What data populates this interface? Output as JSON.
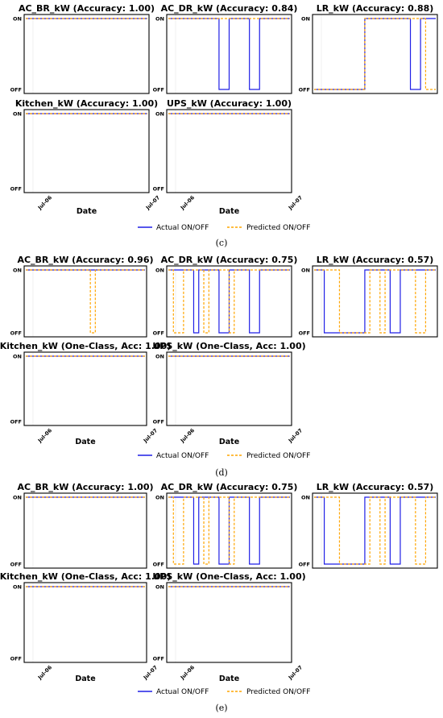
{
  "chart_data": [
    {
      "group": "(c)",
      "type": "line",
      "state_labels": {
        "on": "ON",
        "off": "OFF"
      },
      "x_ticks": [
        "Jul-06",
        "Jul-07"
      ],
      "xlabel": "Date",
      "legend": {
        "actual": "Actual ON/OFF",
        "predicted": "Predicted ON/OFF"
      },
      "colors": {
        "actual": "#1f1fe6",
        "predicted": "#ffa500"
      },
      "panels": [
        {
          "title": "AC_BR_kW (Accuracy: 1.00)",
          "series": [
            {
              "name": "Actual ON/OFF",
              "values": [
                1,
                1,
                1,
                1,
                1,
                1,
                1,
                1,
                1,
                1,
                1,
                1,
                1,
                1,
                1,
                1,
                1,
                1,
                1,
                1,
                1,
                1,
                1,
                1
              ]
            },
            {
              "name": "Predicted ON/OFF",
              "values": [
                1,
                1,
                1,
                1,
                1,
                1,
                1,
                1,
                1,
                1,
                1,
                1,
                1,
                1,
                1,
                1,
                1,
                1,
                1,
                1,
                1,
                1,
                1,
                1
              ]
            }
          ]
        },
        {
          "title": "AC_DR_kW (Accuracy: 0.84)",
          "series": [
            {
              "name": "Actual ON/OFF",
              "values": [
                1,
                1,
                1,
                1,
                1,
                1,
                1,
                1,
                1,
                1,
                0,
                0,
                1,
                1,
                1,
                1,
                0,
                0,
                1,
                1,
                1,
                1,
                1,
                1
              ]
            },
            {
              "name": "Predicted ON/OFF",
              "values": [
                1,
                1,
                1,
                1,
                1,
                1,
                1,
                1,
                1,
                1,
                1,
                1,
                1,
                1,
                1,
                1,
                1,
                1,
                1,
                1,
                1,
                1,
                1,
                1
              ]
            }
          ]
        },
        {
          "title": "LR_kW (Accuracy: 0.88)",
          "series": [
            {
              "name": "Actual ON/OFF",
              "values": [
                0,
                0,
                0,
                0,
                0,
                0,
                0,
                0,
                0,
                0,
                1,
                1,
                1,
                1,
                1,
                1,
                1,
                1,
                1,
                0,
                0,
                1,
                1,
                1
              ]
            },
            {
              "name": "Predicted ON/OFF",
              "values": [
                0,
                0,
                0,
                0,
                0,
                0,
                0,
                0,
                0,
                0,
                1,
                1,
                1,
                1,
                1,
                1,
                1,
                1,
                1,
                1,
                1,
                1,
                0,
                0
              ]
            }
          ]
        },
        {
          "title": "Kitchen_kW (Accuracy: 1.00)",
          "series": [
            {
              "name": "Actual ON/OFF",
              "values": [
                1,
                1,
                1,
                1,
                1,
                1,
                1,
                1,
                1,
                1,
                1,
                1,
                1,
                1,
                1,
                1,
                1,
                1,
                1,
                1,
                1,
                1,
                1,
                1
              ]
            },
            {
              "name": "Predicted ON/OFF",
              "values": [
                1,
                1,
                1,
                1,
                1,
                1,
                1,
                1,
                1,
                1,
                1,
                1,
                1,
                1,
                1,
                1,
                1,
                1,
                1,
                1,
                1,
                1,
                1,
                1
              ]
            }
          ]
        },
        {
          "title": "UPS_kW (Accuracy: 1.00)",
          "series": [
            {
              "name": "Actual ON/OFF",
              "values": [
                1,
                1,
                1,
                1,
                1,
                1,
                1,
                1,
                1,
                1,
                1,
                1,
                1,
                1,
                1,
                1,
                1,
                1,
                1,
                1,
                1,
                1,
                1,
                1
              ]
            },
            {
              "name": "Predicted ON/OFF",
              "values": [
                1,
                1,
                1,
                1,
                1,
                1,
                1,
                1,
                1,
                1,
                1,
                1,
                1,
                1,
                1,
                1,
                1,
                1,
                1,
                1,
                1,
                1,
                1,
                1
              ]
            }
          ]
        }
      ]
    },
    {
      "group": "(d)",
      "type": "line",
      "state_labels": {
        "on": "ON",
        "off": "OFF"
      },
      "x_ticks": [
        "Jul-06",
        "Jul-07"
      ],
      "xlabel": "Date",
      "legend": {
        "actual": "Actual ON/OFF",
        "predicted": "Predicted ON/OFF"
      },
      "colors": {
        "actual": "#1f1fe6",
        "predicted": "#ffa500"
      },
      "panels": [
        {
          "title": "AC_BR_kW (Accuracy: 0.96)",
          "series": [
            {
              "name": "Actual ON/OFF",
              "values": [
                1,
                1,
                1,
                1,
                1,
                1,
                1,
                1,
                1,
                1,
                1,
                1,
                1,
                1,
                1,
                1,
                1,
                1,
                1,
                1,
                1,
                1,
                1,
                1
              ]
            },
            {
              "name": "Predicted ON/OFF",
              "values": [
                1,
                1,
                1,
                1,
                1,
                1,
                1,
                1,
                1,
                1,
                1,
                1,
                1,
                0,
                1,
                1,
                1,
                1,
                1,
                1,
                1,
                1,
                1,
                1
              ]
            }
          ]
        },
        {
          "title": "AC_DR_kW (Accuracy: 0.75)",
          "series": [
            {
              "name": "Actual ON/OFF",
              "values": [
                1,
                1,
                1,
                1,
                1,
                0,
                1,
                1,
                1,
                1,
                0,
                0,
                1,
                1,
                1,
                1,
                0,
                0,
                1,
                1,
                1,
                1,
                1,
                1
              ]
            },
            {
              "name": "Predicted ON/OFF",
              "values": [
                1,
                0,
                0,
                1,
                1,
                1,
                1,
                0,
                1,
                1,
                1,
                1,
                0,
                1,
                1,
                1,
                1,
                1,
                1,
                1,
                1,
                1,
                1,
                1
              ]
            }
          ]
        },
        {
          "title": "LR_kW (Accuracy: 0.57)",
          "series": [
            {
              "name": "Actual ON/OFF",
              "values": [
                1,
                1,
                0,
                0,
                0,
                0,
                0,
                0,
                0,
                0,
                1,
                1,
                1,
                1,
                1,
                0,
                0,
                1,
                1,
                1,
                1,
                1,
                1,
                1
              ]
            },
            {
              "name": "Predicted ON/OFF",
              "values": [
                1,
                1,
                1,
                1,
                1,
                0,
                0,
                0,
                0,
                0,
                0,
                1,
                1,
                0,
                1,
                1,
                1,
                1,
                1,
                1,
                0,
                0,
                1,
                1
              ]
            }
          ]
        },
        {
          "title": "Kitchen_kW (One-Class, Acc: 1.00)",
          "series": [
            {
              "name": "Actual ON/OFF",
              "values": [
                1,
                1,
                1,
                1,
                1,
                1,
                1,
                1,
                1,
                1,
                1,
                1,
                1,
                1,
                1,
                1,
                1,
                1,
                1,
                1,
                1,
                1,
                1,
                1
              ]
            },
            {
              "name": "Predicted ON/OFF",
              "values": [
                1,
                1,
                1,
                1,
                1,
                1,
                1,
                1,
                1,
                1,
                1,
                1,
                1,
                1,
                1,
                1,
                1,
                1,
                1,
                1,
                1,
                1,
                1,
                1
              ]
            }
          ]
        },
        {
          "title": "UPS_kW (One-Class, Acc: 1.00)",
          "series": [
            {
              "name": "Actual ON/OFF",
              "values": [
                1,
                1,
                1,
                1,
                1,
                1,
                1,
                1,
                1,
                1,
                1,
                1,
                1,
                1,
                1,
                1,
                1,
                1,
                1,
                1,
                1,
                1,
                1,
                1
              ]
            },
            {
              "name": "Predicted ON/OFF",
              "values": [
                1,
                1,
                1,
                1,
                1,
                1,
                1,
                1,
                1,
                1,
                1,
                1,
                1,
                1,
                1,
                1,
                1,
                1,
                1,
                1,
                1,
                1,
                1,
                1
              ]
            }
          ]
        }
      ]
    },
    {
      "group": "(e)",
      "type": "line",
      "state_labels": {
        "on": "ON",
        "off": "OFF"
      },
      "x_ticks": [
        "Jul-06",
        "Jul-07"
      ],
      "xlabel": "Date",
      "legend": {
        "actual": "Actual ON/OFF",
        "predicted": "Predicted ON/OFF"
      },
      "colors": {
        "actual": "#1f1fe6",
        "predicted": "#ffa500"
      },
      "panels": [
        {
          "title": "AC_BR_kW (Accuracy: 1.00)",
          "series": [
            {
              "name": "Actual ON/OFF",
              "values": [
                1,
                1,
                1,
                1,
                1,
                1,
                1,
                1,
                1,
                1,
                1,
                1,
                1,
                1,
                1,
                1,
                1,
                1,
                1,
                1,
                1,
                1,
                1,
                1
              ]
            },
            {
              "name": "Predicted ON/OFF",
              "values": [
                1,
                1,
                1,
                1,
                1,
                1,
                1,
                1,
                1,
                1,
                1,
                1,
                1,
                1,
                1,
                1,
                1,
                1,
                1,
                1,
                1,
                1,
                1,
                1
              ]
            }
          ]
        },
        {
          "title": "AC_DR_kW (Accuracy: 0.75)",
          "series": [
            {
              "name": "Actual ON/OFF",
              "values": [
                1,
                1,
                1,
                1,
                1,
                0,
                1,
                1,
                1,
                1,
                0,
                0,
                1,
                1,
                1,
                1,
                0,
                0,
                1,
                1,
                1,
                1,
                1,
                1
              ]
            },
            {
              "name": "Predicted ON/OFF",
              "values": [
                1,
                0,
                0,
                1,
                1,
                1,
                1,
                0,
                1,
                1,
                1,
                1,
                0,
                1,
                1,
                1,
                1,
                1,
                1,
                1,
                1,
                1,
                1,
                1
              ]
            }
          ]
        },
        {
          "title": "LR_kW (Accuracy: 0.57)",
          "series": [
            {
              "name": "Actual ON/OFF",
              "values": [
                1,
                1,
                0,
                0,
                0,
                0,
                0,
                0,
                0,
                0,
                1,
                1,
                1,
                1,
                1,
                0,
                0,
                1,
                1,
                1,
                1,
                1,
                1,
                1
              ]
            },
            {
              "name": "Predicted ON/OFF",
              "values": [
                1,
                1,
                1,
                1,
                1,
                0,
                0,
                0,
                0,
                0,
                0,
                1,
                1,
                0,
                1,
                1,
                1,
                1,
                1,
                1,
                0,
                0,
                1,
                1
              ]
            }
          ]
        },
        {
          "title": "Kitchen_kW (One-Class, Acc: 1.00)",
          "series": [
            {
              "name": "Actual ON/OFF",
              "values": [
                1,
                1,
                1,
                1,
                1,
                1,
                1,
                1,
                1,
                1,
                1,
                1,
                1,
                1,
                1,
                1,
                1,
                1,
                1,
                1,
                1,
                1,
                1,
                1
              ]
            },
            {
              "name": "Predicted ON/OFF",
              "values": [
                1,
                1,
                1,
                1,
                1,
                1,
                1,
                1,
                1,
                1,
                1,
                1,
                1,
                1,
                1,
                1,
                1,
                1,
                1,
                1,
                1,
                1,
                1,
                1
              ]
            }
          ]
        },
        {
          "title": "UPS_kW (One-Class, Acc: 1.00)",
          "series": [
            {
              "name": "Actual ON/OFF",
              "values": [
                1,
                1,
                1,
                1,
                1,
                1,
                1,
                1,
                1,
                1,
                1,
                1,
                1,
                1,
                1,
                1,
                1,
                1,
                1,
                1,
                1,
                1,
                1,
                1
              ]
            },
            {
              "name": "Predicted ON/OFF",
              "values": [
                1,
                1,
                1,
                1,
                1,
                1,
                1,
                1,
                1,
                1,
                1,
                1,
                1,
                1,
                1,
                1,
                1,
                1,
                1,
                1,
                1,
                1,
                1,
                1
              ]
            }
          ]
        }
      ]
    }
  ]
}
